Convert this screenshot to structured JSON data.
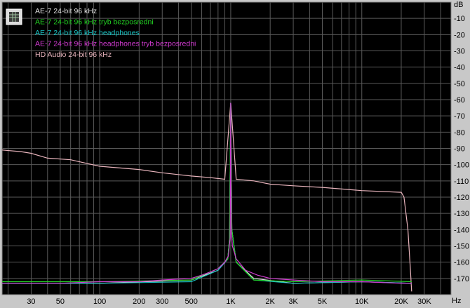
{
  "chart_data": {
    "type": "line",
    "x_scale": "log",
    "xlim": [
      18,
      48000
    ],
    "ylim": [
      -180,
      0
    ],
    "grid": true,
    "legend_placement": "top-left",
    "y_unit": "dB",
    "x_unit": "Hz",
    "y_ticks": [
      -10,
      -20,
      -30,
      -40,
      -50,
      -60,
      -70,
      -80,
      -90,
      -100,
      -110,
      -120,
      -130,
      -140,
      -150,
      -160,
      -170
    ],
    "x_ticks": [
      {
        "v": 30,
        "label": "30"
      },
      {
        "v": 50,
        "label": "50"
      },
      {
        "v": 100,
        "label": "100"
      },
      {
        "v": 200,
        "label": "200"
      },
      {
        "v": 300,
        "label": "300"
      },
      {
        "v": 500,
        "label": "500"
      },
      {
        "v": 1000,
        "label": "1K"
      },
      {
        "v": 2000,
        "label": "2K"
      },
      {
        "v": 3000,
        "label": "3K"
      },
      {
        "v": 5000,
        "label": "5K"
      },
      {
        "v": 10000,
        "label": "10K"
      },
      {
        "v": 20000,
        "label": "20K"
      },
      {
        "v": 30000,
        "label": "30K"
      }
    ],
    "background": "#000000",
    "series": [
      {
        "name": "AE-7 24-bit 96 kHz",
        "color": "#e0e0e0",
        "points": [
          [
            18,
            -173
          ],
          [
            100,
            -173
          ],
          [
            500,
            -171
          ],
          [
            800,
            -165
          ],
          [
            950,
            -158
          ],
          [
            980,
            -145
          ],
          [
            1000,
            -62
          ],
          [
            1020,
            -140
          ],
          [
            1100,
            -160
          ],
          [
            1500,
            -170
          ],
          [
            3000,
            -173
          ],
          [
            10000,
            -172
          ],
          [
            24000,
            -173
          ]
        ]
      },
      {
        "name": "AE-7 24-bit 96 kHz tryb bezposredni",
        "color": "#22d022",
        "points": [
          [
            18,
            -172
          ],
          [
            100,
            -172
          ],
          [
            500,
            -171
          ],
          [
            800,
            -164
          ],
          [
            950,
            -158
          ],
          [
            980,
            -145
          ],
          [
            1000,
            -62
          ],
          [
            1020,
            -140
          ],
          [
            1100,
            -160
          ],
          [
            1500,
            -171
          ],
          [
            3000,
            -172
          ],
          [
            10000,
            -171
          ],
          [
            24000,
            -172
          ]
        ]
      },
      {
        "name": "AE-7 24-bit 96 kHz headphones",
        "color": "#19c4c4",
        "points": [
          [
            18,
            -173
          ],
          [
            100,
            -173
          ],
          [
            500,
            -172
          ],
          [
            800,
            -165
          ],
          [
            950,
            -158
          ],
          [
            980,
            -145
          ],
          [
            1000,
            -62
          ],
          [
            1020,
            -140
          ],
          [
            1100,
            -160
          ],
          [
            1500,
            -171
          ],
          [
            3000,
            -173
          ],
          [
            10000,
            -172
          ],
          [
            24000,
            -173
          ]
        ]
      },
      {
        "name": "AE-7 24-bit 96 kHz headphones tryb bezposredni",
        "color": "#d23ad2",
        "points": [
          [
            18,
            -173
          ],
          [
            50,
            -173
          ],
          [
            100,
            -172
          ],
          [
            200,
            -172
          ],
          [
            300,
            -171
          ],
          [
            500,
            -170
          ],
          [
            600,
            -168
          ],
          [
            700,
            -166
          ],
          [
            800,
            -164
          ],
          [
            900,
            -160
          ],
          [
            960,
            -156
          ],
          [
            990,
            -145
          ],
          [
            1000,
            -62
          ],
          [
            1010,
            -140
          ],
          [
            1030,
            -150
          ],
          [
            1100,
            -158
          ],
          [
            1300,
            -165
          ],
          [
            1600,
            -168
          ],
          [
            2000,
            -170
          ],
          [
            3000,
            -171
          ],
          [
            5000,
            -172
          ],
          [
            10000,
            -172
          ],
          [
            20000,
            -173
          ],
          [
            24000,
            -173
          ]
        ]
      },
      {
        "name": "HD Audio 24-bit 96 kHz",
        "color": "#e8b4bc",
        "points": [
          [
            18,
            -91
          ],
          [
            25,
            -92
          ],
          [
            30,
            -93
          ],
          [
            40,
            -96
          ],
          [
            60,
            -97
          ],
          [
            100,
            -101
          ],
          [
            200,
            -103
          ],
          [
            300,
            -105
          ],
          [
            500,
            -107
          ],
          [
            700,
            -108
          ],
          [
            900,
            -109
          ],
          [
            1000,
            -62
          ],
          [
            1100,
            -109
          ],
          [
            1500,
            -110
          ],
          [
            2000,
            -112
          ],
          [
            3000,
            -113
          ],
          [
            5000,
            -114
          ],
          [
            10000,
            -116
          ],
          [
            20000,
            -117
          ],
          [
            21000,
            -120
          ],
          [
            22500,
            -140
          ],
          [
            23500,
            -165
          ],
          [
            24000,
            -178
          ]
        ]
      }
    ]
  }
}
